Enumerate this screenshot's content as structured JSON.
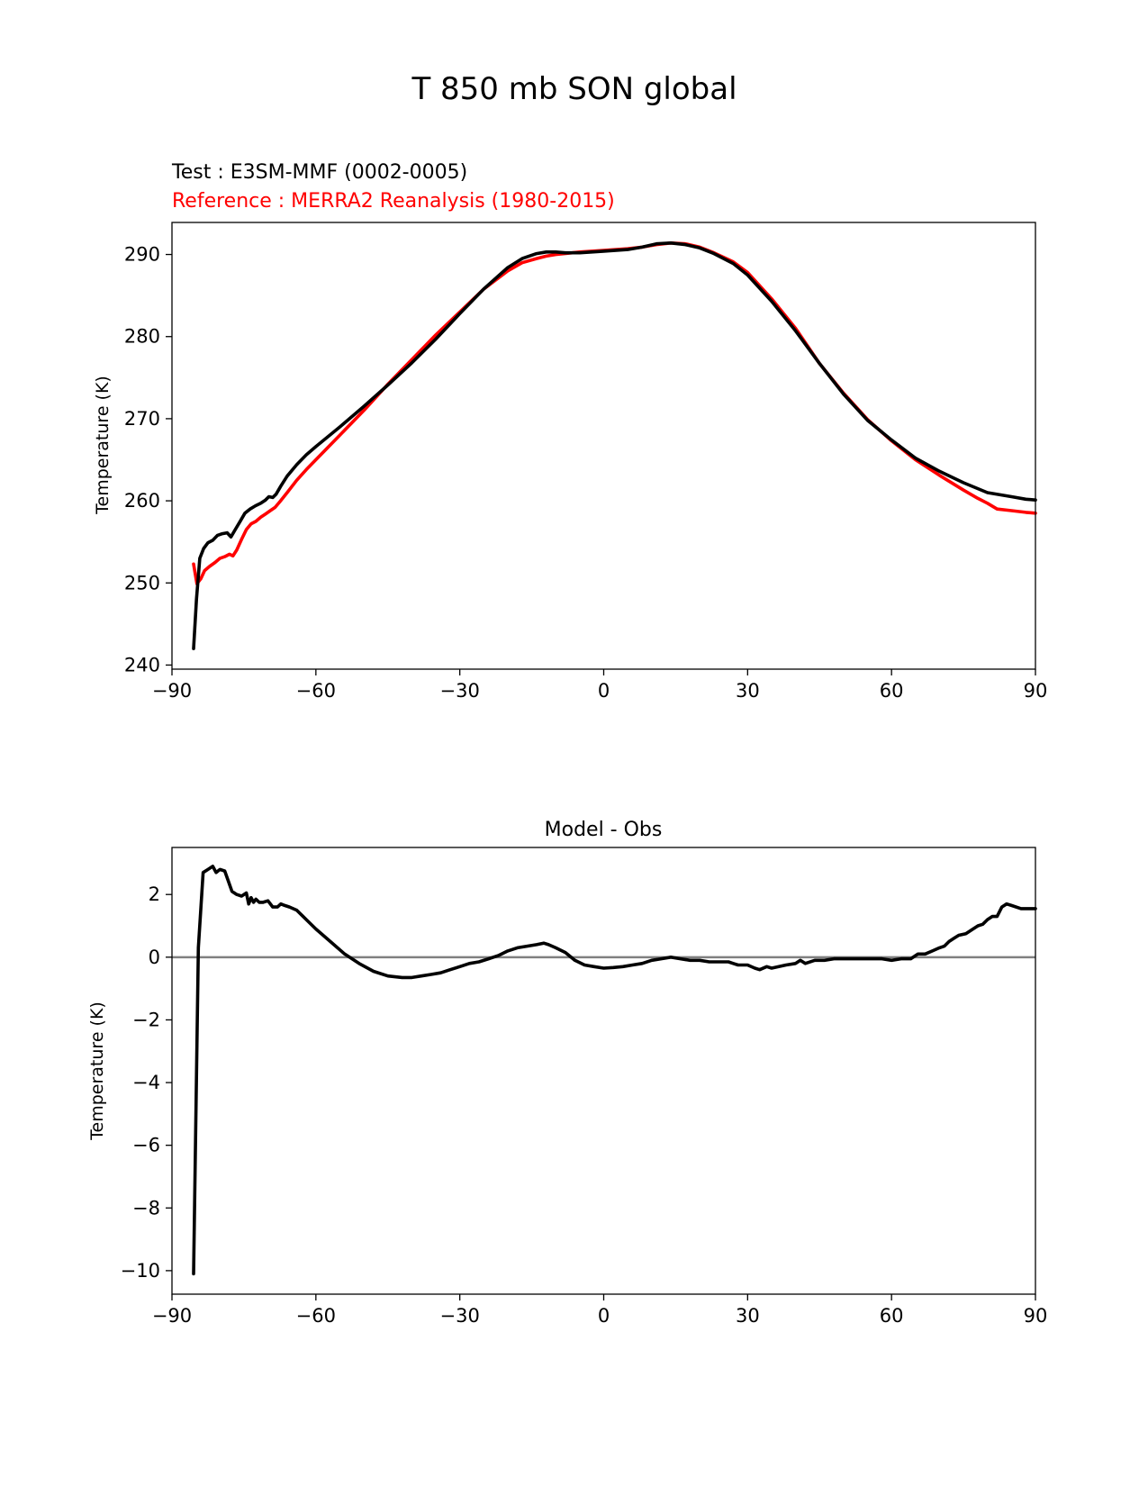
{
  "figure_title": "T 850 mb SON global",
  "chart_data": [
    {
      "type": "line",
      "test_label": "Test : E3SM-MMF (0002-0005)",
      "reference_label": "Reference : MERRA2 Reanalysis (1980-2015)",
      "xlabel": "",
      "ylabel": "Temperature (K)",
      "xlim": [
        -90,
        90
      ],
      "ylim": [
        239.5,
        293.9
      ],
      "xticks": [
        -90,
        -60,
        -30,
        0,
        30,
        60,
        90
      ],
      "xtick_labels": [
        "−90",
        "−60",
        "−30",
        "0",
        "30",
        "60",
        "90"
      ],
      "yticks": [
        240,
        250,
        260,
        270,
        280,
        290
      ],
      "ytick_labels": [
        "240",
        "250",
        "260",
        "270",
        "280",
        "290"
      ],
      "series": [
        {
          "name": "Test",
          "color": "#000000",
          "x": [
            -85.5,
            -84.9,
            -84.2,
            -83.4,
            -82.5,
            -81.5,
            -80.5,
            -79.5,
            -78.5,
            -77.7,
            -76.8,
            -75.8,
            -74.8,
            -73.7,
            -72.6,
            -71.5,
            -70.5,
            -69.8,
            -69.0,
            -68.3,
            -67.3,
            -66.0,
            -64.0,
            -62.0,
            -60.0,
            -55.0,
            -50.0,
            -45.0,
            -40.0,
            -35.0,
            -30.0,
            -25.0,
            -20.0,
            -17.0,
            -14.0,
            -12.0,
            -10.0,
            -8.0,
            -5.0,
            0.0,
            5.0,
            8.0,
            11.0,
            14.0,
            17.0,
            20.0,
            23.0,
            27.0,
            30.0,
            35.0,
            40.0,
            45.0,
            50.0,
            55.0,
            60.0,
            65.0,
            70.0,
            75.0,
            80.0,
            85.0,
            88.0,
            90.0
          ],
          "y": [
            242.0,
            248.0,
            253.0,
            254.2,
            254.9,
            255.2,
            255.8,
            256.0,
            256.1,
            255.6,
            256.5,
            257.5,
            258.5,
            259.0,
            259.4,
            259.7,
            260.1,
            260.5,
            260.4,
            260.8,
            261.8,
            263.0,
            264.4,
            265.6,
            266.6,
            269.0,
            271.5,
            274.1,
            276.8,
            279.7,
            282.8,
            285.8,
            288.4,
            289.5,
            290.1,
            290.3,
            290.3,
            290.2,
            290.2,
            290.4,
            290.6,
            290.9,
            291.3,
            291.4,
            291.2,
            290.8,
            290.1,
            288.9,
            287.5,
            284.3,
            280.7,
            276.7,
            273.0,
            269.8,
            267.4,
            265.2,
            263.6,
            262.2,
            261.0,
            260.5,
            260.2,
            260.1
          ]
        },
        {
          "name": "Reference",
          "color": "#ff0000",
          "x": [
            -85.5,
            -84.8,
            -84.0,
            -83.2,
            -82.2,
            -81.0,
            -80.0,
            -79.0,
            -78.0,
            -77.3,
            -76.5,
            -75.5,
            -74.5,
            -73.5,
            -72.5,
            -71.5,
            -70.5,
            -69.5,
            -68.5,
            -67.5,
            -66.0,
            -64.0,
            -62.0,
            -60.0,
            -55.0,
            -50.0,
            -45.0,
            -40.0,
            -35.0,
            -30.0,
            -25.0,
            -20.0,
            -17.0,
            -14.0,
            -12.0,
            -10.0,
            -5.0,
            0.0,
            5.0,
            8.0,
            11.0,
            14.0,
            17.0,
            20.0,
            23.0,
            27.0,
            30.0,
            35.0,
            40.0,
            45.0,
            50.0,
            55.0,
            60.0,
            65.0,
            70.0,
            75.0,
            78.0,
            80.0,
            82.0,
            85.0,
            88.0,
            90.0
          ],
          "y": [
            252.3,
            249.9,
            250.5,
            251.5,
            252.0,
            252.5,
            253.0,
            253.2,
            253.5,
            253.3,
            254.0,
            255.3,
            256.5,
            257.2,
            257.5,
            258.0,
            258.4,
            258.8,
            259.2,
            259.9,
            261.0,
            262.5,
            263.8,
            265.0,
            268.0,
            271.0,
            274.2,
            277.2,
            280.2,
            283.0,
            285.8,
            288.0,
            289.0,
            289.5,
            289.8,
            290.0,
            290.3,
            290.5,
            290.7,
            290.9,
            291.2,
            291.4,
            291.3,
            290.9,
            290.2,
            289.1,
            287.8,
            284.6,
            281.0,
            276.7,
            273.1,
            269.9,
            267.3,
            265.0,
            263.1,
            261.3,
            260.3,
            259.7,
            259.0,
            258.8,
            258.6,
            258.5
          ]
        }
      ]
    },
    {
      "type": "line",
      "title": "Model - Obs",
      "xlabel": "",
      "ylabel": "Temperature (K)",
      "xlim": [
        -90,
        90
      ],
      "ylim": [
        -10.75,
        3.5
      ],
      "xticks": [
        -90,
        -60,
        -30,
        0,
        30,
        60,
        90
      ],
      "xtick_labels": [
        "−90",
        "−60",
        "−30",
        "0",
        "30",
        "60",
        "90"
      ],
      "yticks": [
        -10,
        -8,
        -6,
        -4,
        -2,
        0,
        2
      ],
      "ytick_labels": [
        "−10",
        "−8",
        "−6",
        "−4",
        "−2",
        "0",
        "2"
      ],
      "zero_line": {
        "y": 0,
        "color": "#808080"
      },
      "series": [
        {
          "name": "Difference",
          "color": "#000000",
          "x": [
            -85.5,
            -85.0,
            -84.5,
            -83.5,
            -82.5,
            -81.5,
            -80.8,
            -80.0,
            -79.0,
            -78.3,
            -77.5,
            -76.5,
            -75.5,
            -74.5,
            -74.0,
            -73.5,
            -73.0,
            -72.5,
            -71.8,
            -71.0,
            -70.0,
            -69.0,
            -68.0,
            -67.3,
            -66.5,
            -65.5,
            -64.0,
            -62.0,
            -60.0,
            -57.0,
            -54.0,
            -51.0,
            -48.0,
            -45.0,
            -42.0,
            -40.0,
            -38.0,
            -36.0,
            -34.0,
            -32.0,
            -30.0,
            -28.0,
            -26.0,
            -24.0,
            -22.0,
            -20.0,
            -18.0,
            -16.0,
            -14.0,
            -12.5,
            -11.5,
            -10.0,
            -8.0,
            -6.0,
            -4.0,
            -2.0,
            0.0,
            2.0,
            4.0,
            6.0,
            8.0,
            10.0,
            12.0,
            14.0,
            16.0,
            18.0,
            20.0,
            22.0,
            24.0,
            26.0,
            27.0,
            28.0,
            30.0,
            31.5,
            32.5,
            34.0,
            35.0,
            36.5,
            38.0,
            40.0,
            41.0,
            42.0,
            44.0,
            46.0,
            48.0,
            50.0,
            52.0,
            54.0,
            56.0,
            58.0,
            60.0,
            62.0,
            64.0,
            65.5,
            67.0,
            68.5,
            70.0,
            71.0,
            72.0,
            73.0,
            74.0,
            75.5,
            77.0,
            78.0,
            79.0,
            80.0,
            81.0,
            82.0,
            83.0,
            84.0,
            85.0,
            87.0,
            89.0,
            90.0
          ],
          "y": [
            -10.1,
            -5.0,
            0.3,
            2.7,
            2.8,
            2.9,
            2.7,
            2.8,
            2.75,
            2.45,
            2.1,
            2.0,
            1.95,
            2.05,
            1.7,
            1.9,
            1.75,
            1.85,
            1.75,
            1.75,
            1.8,
            1.6,
            1.6,
            1.7,
            1.65,
            1.6,
            1.5,
            1.2,
            0.9,
            0.5,
            0.1,
            -0.2,
            -0.45,
            -0.6,
            -0.65,
            -0.65,
            -0.6,
            -0.55,
            -0.5,
            -0.4,
            -0.3,
            -0.2,
            -0.15,
            -0.05,
            0.05,
            0.2,
            0.3,
            0.35,
            0.4,
            0.45,
            0.4,
            0.3,
            0.15,
            -0.1,
            -0.25,
            -0.3,
            -0.35,
            -0.33,
            -0.3,
            -0.25,
            -0.2,
            -0.1,
            -0.05,
            0.0,
            -0.05,
            -0.1,
            -0.1,
            -0.15,
            -0.15,
            -0.15,
            -0.2,
            -0.25,
            -0.25,
            -0.35,
            -0.4,
            -0.3,
            -0.35,
            -0.3,
            -0.25,
            -0.2,
            -0.1,
            -0.2,
            -0.1,
            -0.1,
            -0.05,
            -0.05,
            -0.05,
            -0.05,
            -0.05,
            -0.05,
            -0.1,
            -0.05,
            -0.05,
            0.1,
            0.1,
            0.2,
            0.3,
            0.35,
            0.5,
            0.6,
            0.7,
            0.75,
            0.9,
            1.0,
            1.05,
            1.2,
            1.3,
            1.3,
            1.6,
            1.7,
            1.65,
            1.55,
            1.55,
            1.55
          ]
        }
      ]
    }
  ]
}
